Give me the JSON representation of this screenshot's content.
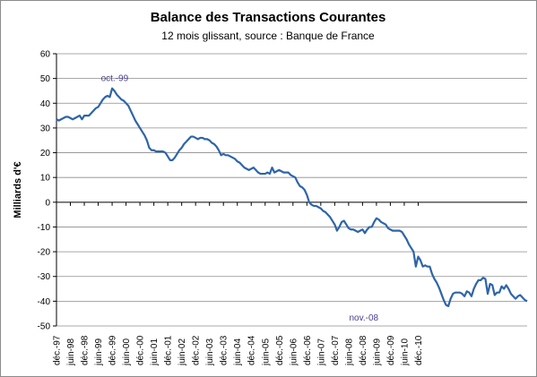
{
  "chart_data": {
    "type": "line",
    "title": "Balance des Transactions  Courantes",
    "subtitle": "12 mois glissant, source : Banque de France",
    "xlabel": "",
    "ylabel": "Milliards d'€",
    "ylim": [
      -50,
      60
    ],
    "yticks": [
      60,
      50,
      40,
      30,
      20,
      10,
      0,
      -10,
      -20,
      -30,
      -40,
      -50
    ],
    "grid": "horizontal",
    "legend": "none",
    "line_color": "#2e65a9",
    "annotation_color": "#4b3e8e",
    "xticks": [
      "déc.-97",
      "juin-98",
      "déc.-98",
      "juin-99",
      "déc.-99",
      "juin-00",
      "déc.-00",
      "juin-01",
      "déc.-01",
      "juin-02",
      "déc.-02",
      "juin-03",
      "déc.-03",
      "juin-04",
      "déc.-04",
      "juin-05",
      "déc.-05",
      "juin-06",
      "déc.-06",
      "juin-07",
      "déc.-07",
      "juin-08",
      "déc.-08",
      "juin-09",
      "déc.-09",
      "juin-10",
      "déc.-10"
    ],
    "start_month": "déc.-97",
    "annotations": [
      {
        "text": "oct.-99",
        "x_index": 22,
        "y": 46
      },
      {
        "text": "nov.-08",
        "x_index": 131,
        "y": -42
      }
    ],
    "series": [
      {
        "values": [
          33.5,
          33,
          33.5,
          34,
          34.5,
          34.5,
          34,
          33.5,
          34,
          34.5,
          35,
          33.5,
          35,
          35,
          35,
          36,
          37,
          38,
          38.5,
          40,
          41.5,
          42.5,
          43,
          42.5,
          46,
          45,
          43.5,
          42.5,
          41.5,
          41,
          40,
          39,
          37,
          35,
          33,
          31.5,
          30,
          28.5,
          27,
          25,
          22,
          21,
          21,
          20.5,
          20.5,
          20.5,
          20.5,
          20,
          18.5,
          17,
          17,
          18,
          19.5,
          21,
          22,
          23.5,
          24.5,
          25.5,
          26.5,
          26.5,
          26,
          25.5,
          26,
          26,
          25.5,
          25.5,
          25,
          24,
          23.5,
          22.5,
          21,
          19,
          19.5,
          19,
          19,
          18.5,
          18,
          17.5,
          16.5,
          16,
          15,
          14,
          13.5,
          13,
          13.5,
          14,
          13,
          12,
          11.5,
          11.5,
          11.5,
          12,
          11.5,
          14,
          12,
          12.5,
          13,
          12.5,
          12,
          12,
          12,
          11,
          10.5,
          10,
          8,
          6.5,
          6,
          5,
          3,
          0,
          -1,
          -1.5,
          -1.5,
          -2,
          -2.5,
          -3.5,
          -4,
          -5,
          -6,
          -7.5,
          -9,
          -11.5,
          -10,
          -8,
          -7.5,
          -9,
          -10.5,
          -11,
          -11,
          -11.5,
          -12,
          -11.5,
          -11,
          -12.5,
          -11,
          -10,
          -10,
          -8,
          -6.5,
          -7,
          -8,
          -8.5,
          -9,
          -10.5,
          -11,
          -11.5,
          -11.5,
          -11.5,
          -11.5,
          -12,
          -13.5,
          -15,
          -17,
          -18.5,
          -20,
          -26,
          -22,
          -23.5,
          -26,
          -25.5,
          -26,
          -26,
          -29,
          -31,
          -32.5,
          -34.5,
          -37,
          -39.5,
          -41.5,
          -42,
          -39,
          -37,
          -36.5,
          -36.5,
          -36.5,
          -37,
          -38,
          -36,
          -36.5,
          -38,
          -35,
          -33,
          -31.5,
          -31.5,
          -30.5,
          -31,
          -37,
          -33,
          -33.5,
          -37.5,
          -36.5,
          -36.5,
          -34,
          -35,
          -33.5,
          -35,
          -37,
          -38,
          -39,
          -38,
          -37.5,
          -38.5,
          -39.5,
          -40
        ]
      }
    ]
  }
}
